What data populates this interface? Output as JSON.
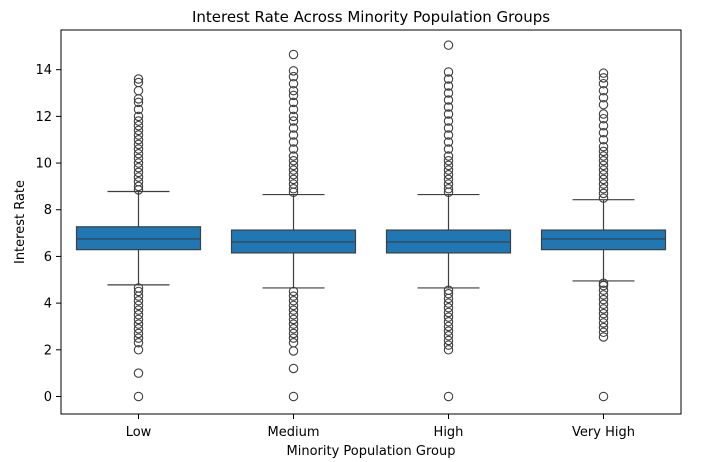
{
  "chart_data": {
    "type": "box",
    "title": "Interest Rate Across Minority Population Groups",
    "xlabel": "Minority Population Group",
    "ylabel": "Interest Rate",
    "ylim": [
      -0.75,
      15.7
    ],
    "yticks": [
      0,
      2,
      4,
      6,
      8,
      10,
      12,
      14
    ],
    "grid": false,
    "box_color": "#1f77b4",
    "line_color": "#3f3f3f",
    "categories": [
      "Low",
      "Medium",
      "High",
      "Very High"
    ],
    "boxes": [
      {
        "category": "Low",
        "whisker_low": 4.78,
        "q1": 6.29,
        "median": 6.75,
        "q3": 7.27,
        "whisker_high": 8.78,
        "outliers": [
          0,
          1.0,
          2.0,
          2.3,
          2.5,
          2.7,
          2.9,
          3.1,
          3.3,
          3.5,
          3.7,
          3.9,
          4.1,
          4.3,
          4.5,
          4.65,
          8.85,
          9.0,
          9.2,
          9.4,
          9.6,
          9.8,
          10.0,
          10.2,
          10.4,
          10.6,
          10.8,
          11.0,
          11.2,
          11.4,
          11.6,
          11.8,
          12.0,
          12.3,
          12.6,
          12.75,
          13.1,
          13.45,
          13.6
        ]
      },
      {
        "category": "Medium",
        "whisker_low": 4.65,
        "q1": 6.15,
        "median": 6.62,
        "q3": 7.13,
        "whisker_high": 8.65,
        "outliers": [
          0,
          1.2,
          1.95,
          2.3,
          2.5,
          2.7,
          2.9,
          3.1,
          3.3,
          3.5,
          3.7,
          3.9,
          4.1,
          4.3,
          4.5,
          8.75,
          8.9,
          9.1,
          9.3,
          9.5,
          9.7,
          9.9,
          10.1,
          10.3,
          10.6,
          10.9,
          11.2,
          11.5,
          11.8,
          12.0,
          12.3,
          12.6,
          12.9,
          13.1,
          13.4,
          13.7,
          13.95,
          14.65
        ]
      },
      {
        "category": "High",
        "whisker_low": 4.65,
        "q1": 6.15,
        "median": 6.62,
        "q3": 7.13,
        "whisker_high": 8.65,
        "outliers": [
          0,
          2.0,
          2.2,
          2.4,
          2.6,
          2.8,
          3.0,
          3.2,
          3.4,
          3.6,
          3.8,
          4.0,
          4.2,
          4.4,
          4.55,
          8.75,
          8.9,
          9.1,
          9.3,
          9.5,
          9.7,
          9.9,
          10.1,
          10.3,
          10.6,
          10.9,
          11.2,
          11.5,
          11.8,
          12.1,
          12.4,
          12.7,
          13.0,
          13.3,
          13.6,
          13.9,
          15.05
        ]
      },
      {
        "category": "Very High",
        "whisker_low": 4.95,
        "q1": 6.29,
        "median": 6.75,
        "q3": 7.13,
        "whisker_high": 8.43,
        "outliers": [
          0,
          2.55,
          2.75,
          2.95,
          3.15,
          3.35,
          3.55,
          3.75,
          3.95,
          4.15,
          4.35,
          4.55,
          4.75,
          4.85,
          8.5,
          8.7,
          8.9,
          9.1,
          9.3,
          9.5,
          9.7,
          9.9,
          10.1,
          10.3,
          10.5,
          10.7,
          11.0,
          11.3,
          11.6,
          11.9,
          12.1,
          12.5,
          12.8,
          13.1,
          13.4,
          13.65,
          13.85
        ]
      }
    ]
  }
}
